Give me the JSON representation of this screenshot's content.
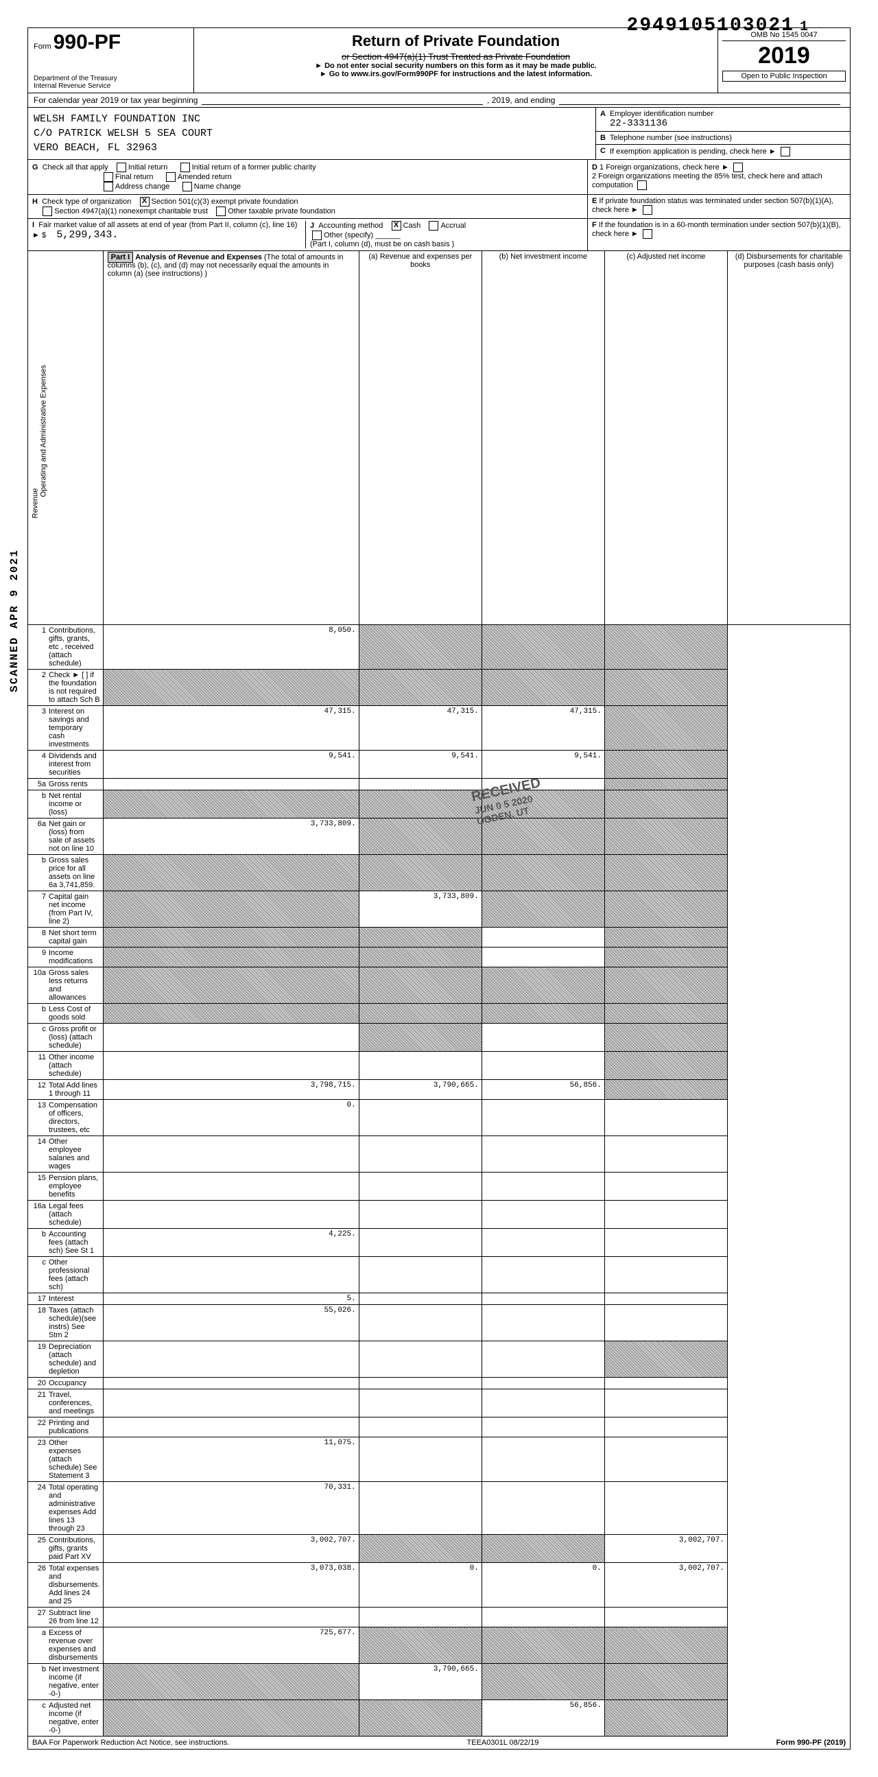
{
  "top_dln": "2949105103021",
  "top_dln_suffix": "1",
  "form_prefix": "Form",
  "form_number": "990-PF",
  "dept1": "Department of the Treasury",
  "dept2": "Internal Revenue Service",
  "title": "Return of Private Foundation",
  "subtitle_strike": "or Section 4947(a)(1) Trust Treated as Private Foundation",
  "note1": "► Do not enter social security numbers on this form as it may be made public.",
  "note2": "► Go to www.irs.gov/Form990PF for instructions and the latest information.",
  "omb": "OMB No 1545 0047",
  "year": "2019",
  "open_inspection": "Open to Public Inspection",
  "cal_year_line": "For calendar year 2019 or tax year beginning",
  "cal_year_mid": ", 2019, and ending",
  "name1": "WELSH FAMILY FOUNDATION INC",
  "name2": "C/O PATRICK WELSH       5 SEA COURT",
  "name3": "VERO BEACH, FL 32963",
  "A_label": "Employer identification number",
  "A_val": "22-3331136",
  "B_label": "Telephone number (see instructions)",
  "C_label": "If exemption application is pending, check here",
  "D1_label": "1 Foreign organizations, check here",
  "D2_label": "2 Foreign organizations meeting the 85% test, check here and attach computation",
  "E_label": "If private foundation status was terminated under section 507(b)(1)(A), check here",
  "F_label": "If the foundation is in a 60-month termination under section 507(b)(1)(B), check here",
  "G_label": "Check all that apply",
  "G_opts": [
    "Initial return",
    "Final return",
    "Address change",
    "Initial return of a former public charity",
    "Amended return",
    "Name change"
  ],
  "H_label": "Check type of organization",
  "H_501": "Section 501(c)(3) exempt private foundation",
  "H_4947": "Section 4947(a)(1) nonexempt charitable trust",
  "H_other": "Other taxable private foundation",
  "I_label": "Fair market value of all assets at end of year (from Part II, column (c), line 16)",
  "I_val": "5,299,343.",
  "J_label": "Accounting method",
  "J_cash": "Cash",
  "J_accrual": "Accrual",
  "J_other": "Other (specify)",
  "J_note": "(Part I, column (d), must be on cash basis )",
  "part1_label": "Part I",
  "part1_title": "Analysis of Revenue and Expenses",
  "part1_note": "(The total of amounts in columns (b), (c), and (d) may not necessarily equal the amounts in column (a) (see instructions) )",
  "col_a": "(a) Revenue and expenses per books",
  "col_b": "(b) Net investment income",
  "col_c": "(c) Adjusted net income",
  "col_d": "(d) Disbursements for charitable purposes (cash basis only)",
  "revenue_lines": [
    {
      "n": "1",
      "t": "Contributions, gifts, grants, etc , received (attach schedule)",
      "a": "8,050.",
      "b": "S",
      "c": "S",
      "d": "S"
    },
    {
      "n": "2",
      "t": "Check ►  [ ] if the foundation is not required to attach Sch B",
      "a": "S",
      "b": "S",
      "c": "S",
      "d": "S"
    },
    {
      "n": "3",
      "t": "Interest on savings and temporary cash investments",
      "a": "47,315.",
      "b": "47,315.",
      "c": "47,315.",
      "d": "S"
    },
    {
      "n": "4",
      "t": "Dividends and interest from securities",
      "a": "9,541.",
      "b": "9,541.",
      "c": "9,541.",
      "d": "S"
    },
    {
      "n": "5a",
      "t": "Gross rents",
      "a": "",
      "b": "",
      "c": "",
      "d": "S"
    },
    {
      "n": "b",
      "t": "Net rental income or (loss)",
      "a": "S",
      "b": "S",
      "c": "S",
      "d": "S"
    },
    {
      "n": "6a",
      "t": "Net gain or (loss) from sale of assets not on line 10",
      "a": "3,733,809.",
      "b": "S",
      "c": "S",
      "d": "S"
    },
    {
      "n": "b",
      "t": "Gross sales price for all assets on line 6a     3,741,859.",
      "a": "S",
      "b": "S",
      "c": "S",
      "d": "S"
    },
    {
      "n": "7",
      "t": "Capital gain net income (from Part IV, line 2)",
      "a": "S",
      "b": "3,733,809.",
      "c": "S",
      "d": "S"
    },
    {
      "n": "8",
      "t": "Net short term capital gain",
      "a": "S",
      "b": "S",
      "c": "",
      "d": "S"
    },
    {
      "n": "9",
      "t": "Income modifications",
      "a": "S",
      "b": "S",
      "c": "",
      "d": "S"
    },
    {
      "n": "10a",
      "t": "Gross sales less returns and allowances",
      "a": "S",
      "b": "S",
      "c": "S",
      "d": "S"
    },
    {
      "n": "b",
      "t": "Less Cost of goods sold",
      "a": "S",
      "b": "S",
      "c": "S",
      "d": "S"
    },
    {
      "n": "c",
      "t": "Gross profit or (loss) (attach schedule)",
      "a": "",
      "b": "S",
      "c": "",
      "d": "S"
    },
    {
      "n": "11",
      "t": "Other income (attach schedule)",
      "a": "",
      "b": "",
      "c": "",
      "d": "S"
    },
    {
      "n": "12",
      "t": "Total  Add lines 1 through 11",
      "a": "3,798,715.",
      "b": "3,790,665.",
      "c": "56,856.",
      "d": "S"
    }
  ],
  "expense_lines": [
    {
      "n": "13",
      "t": "Compensation of officers, directors, trustees, etc",
      "a": "0.",
      "b": "",
      "c": "",
      "d": ""
    },
    {
      "n": "14",
      "t": "Other employee salaries and wages",
      "a": "",
      "b": "",
      "c": "",
      "d": ""
    },
    {
      "n": "15",
      "t": "Pension plans, employee benefits",
      "a": "",
      "b": "",
      "c": "",
      "d": ""
    },
    {
      "n": "16a",
      "t": "Legal fees (attach schedule)",
      "a": "",
      "b": "",
      "c": "",
      "d": ""
    },
    {
      "n": "b",
      "t": "Accounting fees (attach sch)      See St 1",
      "a": "4,225.",
      "b": "",
      "c": "",
      "d": ""
    },
    {
      "n": "c",
      "t": "Other professional fees (attach sch)",
      "a": "",
      "b": "",
      "c": "",
      "d": ""
    },
    {
      "n": "17",
      "t": "Interest",
      "a": "5.",
      "b": "",
      "c": "",
      "d": ""
    },
    {
      "n": "18",
      "t": "Taxes (attach schedule)(see instrs)   See Stm 2",
      "a": "55,026.",
      "b": "",
      "c": "",
      "d": ""
    },
    {
      "n": "19",
      "t": "Depreciation (attach schedule) and depletion",
      "a": "",
      "b": "",
      "c": "",
      "d": "S"
    },
    {
      "n": "20",
      "t": "Occupancy",
      "a": "",
      "b": "",
      "c": "",
      "d": ""
    },
    {
      "n": "21",
      "t": "Travel, conferences, and meetings",
      "a": "",
      "b": "",
      "c": "",
      "d": ""
    },
    {
      "n": "22",
      "t": "Printing and publications",
      "a": "",
      "b": "",
      "c": "",
      "d": ""
    },
    {
      "n": "23",
      "t": "Other expenses (attach schedule)                 See Statement 3",
      "a": "11,075.",
      "b": "",
      "c": "",
      "d": ""
    },
    {
      "n": "24",
      "t": "Total operating and administrative expenses  Add lines 13 through 23",
      "a": "70,331.",
      "b": "",
      "c": "",
      "d": ""
    },
    {
      "n": "25",
      "t": "Contributions, gifts, grants paid         Part XV",
      "a": "3,002,707.",
      "b": "S",
      "c": "S",
      "d": "3,002,707."
    },
    {
      "n": "26",
      "t": "Total expenses and disbursements. Add lines 24 and 25",
      "a": "3,073,038.",
      "b": "0.",
      "c": "0.",
      "d": "3,002,707."
    },
    {
      "n": "27",
      "t": "Subtract line 26 from line 12",
      "a": "",
      "b": "",
      "c": "",
      "d": ""
    },
    {
      "n": "a",
      "t": "Excess of revenue over expenses and disbursements",
      "a": "725,677.",
      "b": "S",
      "c": "S",
      "d": "S"
    },
    {
      "n": "b",
      "t": "Net investment income (if negative, enter -0-)",
      "a": "S",
      "b": "3,790,665.",
      "c": "S",
      "d": "S"
    },
    {
      "n": "c",
      "t": "Adjusted net income (if negative, enter -0-)",
      "a": "S",
      "b": "S",
      "c": "56,856.",
      "d": "S"
    }
  ],
  "footer_baa": "BAA  For Paperwork Reduction Act Notice, see instructions.",
  "footer_code": "TEEA0301L  08/22/19",
  "footer_form": "Form 990-PF (2019)",
  "side_scanned": "SCANNED APR 9 2021",
  "stamp_received": "RECEIVED",
  "stamp_date": "JUN 0 5 2020",
  "stamp_loc": "OGDEN, UT",
  "revenue_label": "Revenue",
  "expenses_label": "Operating and Administrative Expenses"
}
